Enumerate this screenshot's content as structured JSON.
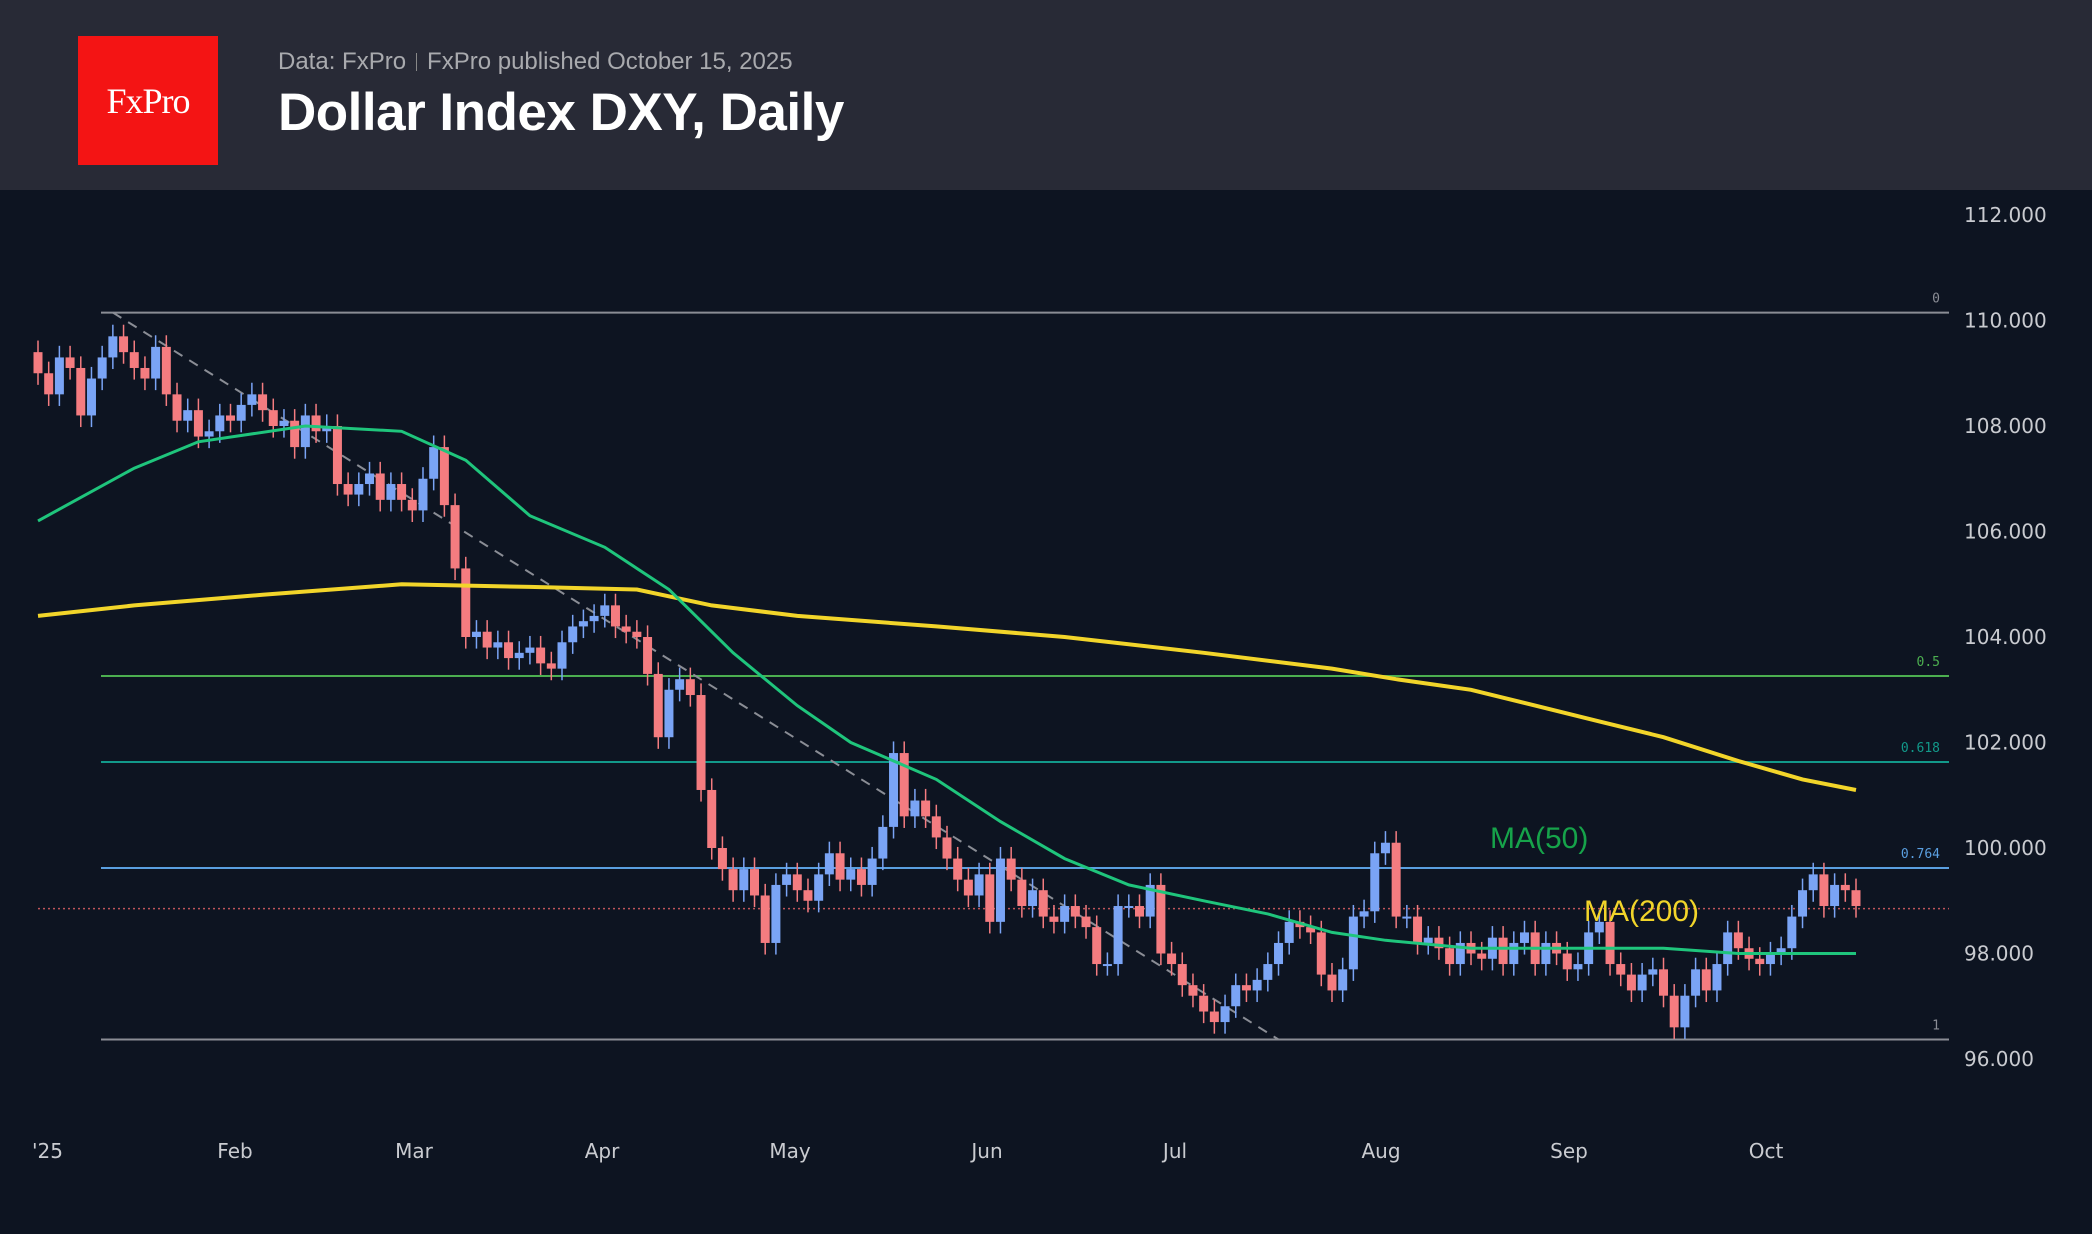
{
  "header": {
    "logo": "FxPro",
    "data_source": "Data: FxPro",
    "published": "FxPro published October 15, 2025",
    "title": "Dollar Index DXY, Daily"
  },
  "chart_data": {
    "type": "candlestick",
    "title": "Dollar Index DXY, Daily",
    "ylim": [
      94.8,
      113.2
    ],
    "y_ticks": [
      "112.000",
      "110.000",
      "108.000",
      "106.000",
      "104.000",
      "102.000",
      "100.000",
      "98.000",
      "96.000"
    ],
    "x_ticks": [
      "'25",
      "Feb",
      "Mar",
      "Apr",
      "May",
      "Jun",
      "Jul",
      "Aug",
      "Sep",
      "Oct"
    ],
    "colors": {
      "up": "#7aa4f5",
      "down": "#f47c80",
      "ma50": "#1fc57c",
      "ma200": "#f2d52a",
      "fib_0": "#8a8d95",
      "fib_05": "#4caf50",
      "fib_0618": "#12998a",
      "fib_0764": "#5a9fe0",
      "fib_1": "#8a8d95",
      "last_price": "#c0555a"
    },
    "first_open": 109.4,
    "close": [
      109.0,
      108.6,
      109.3,
      109.1,
      108.2,
      108.9,
      109.3,
      109.7,
      109.4,
      109.1,
      108.9,
      109.5,
      108.6,
      108.1,
      108.3,
      107.8,
      107.9,
      108.2,
      108.1,
      108.4,
      108.6,
      108.3,
      108.0,
      108.1,
      107.6,
      108.2,
      107.9,
      108.0,
      106.9,
      106.7,
      106.9,
      107.1,
      106.6,
      106.9,
      106.6,
      106.4,
      107.0,
      107.6,
      106.5,
      105.3,
      104.0,
      104.1,
      103.8,
      103.9,
      103.6,
      103.7,
      103.8,
      103.5,
      103.4,
      103.9,
      104.2,
      104.3,
      104.4,
      104.6,
      104.2,
      104.1,
      104.0,
      103.3,
      102.1,
      103.0,
      103.2,
      102.9,
      101.1,
      100.0,
      99.6,
      99.2,
      99.6,
      99.1,
      98.2,
      99.3,
      99.5,
      99.2,
      99.0,
      99.5,
      99.9,
      99.4,
      99.6,
      99.3,
      99.8,
      100.4,
      101.8,
      100.6,
      100.9,
      100.6,
      100.2,
      99.8,
      99.4,
      99.1,
      99.5,
      98.6,
      99.8,
      99.4,
      98.9,
      99.2,
      98.7,
      98.6,
      98.9,
      98.7,
      98.5,
      97.8,
      97.8,
      98.9,
      98.9,
      98.7,
      99.3,
      98.0,
      97.8,
      97.4,
      97.2,
      96.9,
      96.7,
      97.0,
      97.4,
      97.3,
      97.5,
      97.8,
      98.2,
      98.6,
      98.5,
      98.4,
      97.6,
      97.3,
      97.7,
      98.7,
      98.8,
      99.9,
      100.1,
      98.7,
      98.7,
      98.2,
      98.3,
      98.1,
      97.8,
      98.2,
      98.0,
      97.9,
      98.3,
      97.8,
      98.2,
      98.4,
      97.8,
      98.2,
      98.0,
      97.7,
      97.8,
      98.4,
      98.6,
      97.8,
      97.6,
      97.3,
      97.6,
      97.7,
      97.2,
      96.6,
      97.2,
      97.7,
      97.3,
      97.8,
      98.4,
      98.1,
      97.9,
      97.8,
      98.0,
      98.1,
      98.7,
      99.2,
      99.5,
      98.9,
      99.3,
      99.2,
      98.9
    ],
    "ma50": [
      [
        0,
        106.2
      ],
      [
        9,
        107.2
      ],
      [
        15,
        107.7
      ],
      [
        25,
        108.0
      ],
      [
        34,
        107.9
      ],
      [
        40,
        107.35
      ],
      [
        46,
        106.3
      ],
      [
        53,
        105.7
      ],
      [
        59,
        104.9
      ],
      [
        65,
        103.7
      ],
      [
        71,
        102.7
      ],
      [
        76,
        102.0
      ],
      [
        84,
        101.3
      ],
      [
        90,
        100.5
      ],
      [
        96,
        99.8
      ],
      [
        102,
        99.3
      ],
      [
        109,
        99.0
      ],
      [
        115,
        98.75
      ],
      [
        121,
        98.4
      ],
      [
        126,
        98.25
      ],
      [
        134,
        98.1
      ],
      [
        146,
        98.1
      ],
      [
        152,
        98.1
      ],
      [
        159,
        98.0
      ],
      [
        170,
        98.0
      ]
    ],
    "ma200": [
      [
        0,
        104.4
      ],
      [
        9,
        104.6
      ],
      [
        21,
        104.8
      ],
      [
        34,
        105.0
      ],
      [
        46,
        104.95
      ],
      [
        56,
        104.9
      ],
      [
        63,
        104.6
      ],
      [
        71,
        104.4
      ],
      [
        84,
        104.2
      ],
      [
        96,
        104.0
      ],
      [
        109,
        103.7
      ],
      [
        121,
        103.4
      ],
      [
        127,
        103.2
      ],
      [
        134,
        103.0
      ],
      [
        140,
        102.7
      ],
      [
        146,
        102.4
      ],
      [
        152,
        102.1
      ],
      [
        159,
        101.65
      ],
      [
        165,
        101.3
      ],
      [
        170,
        101.1
      ]
    ],
    "series_labels": {
      "ma50": "MA(50)",
      "ma200": "MA(200)"
    },
    "fibonacci": [
      {
        "level": "0",
        "price": 110.15
      },
      {
        "level": "0.5",
        "price": 103.26
      },
      {
        "level": "0.618",
        "price": 101.63
      },
      {
        "level": "0.764",
        "price": 99.62
      },
      {
        "level": "1",
        "price": 96.37
      }
    ],
    "trendline": {
      "from": {
        "bar": 7,
        "price": 110.15
      },
      "to": {
        "bar": 116,
        "price": 96.37
      }
    },
    "last_price": 98.85
  }
}
